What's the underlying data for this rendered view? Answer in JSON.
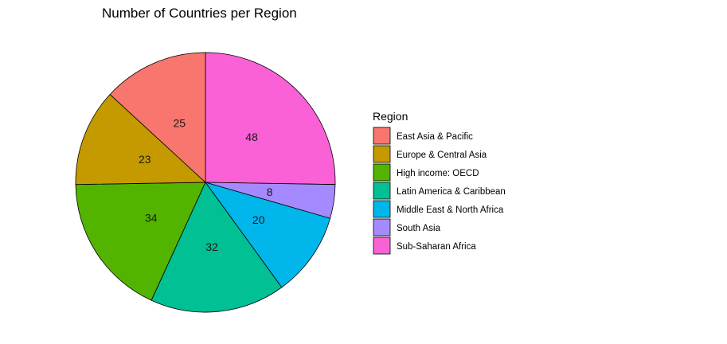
{
  "chart_data": {
    "type": "pie",
    "title": "Number of Countries per Region",
    "legend": {
      "title": "Region",
      "placement": "right"
    },
    "direction": "clockwise",
    "start": "top",
    "slices": [
      {
        "label": "Sub-Saharan Africa",
        "value": 48,
        "color": "#FB61D7"
      },
      {
        "label": "South Asia",
        "value": 8,
        "color": "#A58AFF"
      },
      {
        "label": "Middle East & North Africa",
        "value": 20,
        "color": "#00B6EB"
      },
      {
        "label": "Latin America & Caribbean",
        "value": 32,
        "color": "#00C094"
      },
      {
        "label": "High income: OECD",
        "value": 34,
        "color": "#53B400"
      },
      {
        "label": "Europe & Central Asia",
        "value": 23,
        "color": "#C49A00"
      },
      {
        "label": "East Asia & Pacific",
        "value": 25,
        "color": "#F8766D"
      }
    ],
    "legend_order": [
      "East Asia & Pacific",
      "Europe & Central Asia",
      "High income: OECD",
      "Latin America & Caribbean",
      "Middle East & North Africa",
      "South Asia",
      "Sub-Saharan Africa"
    ]
  }
}
